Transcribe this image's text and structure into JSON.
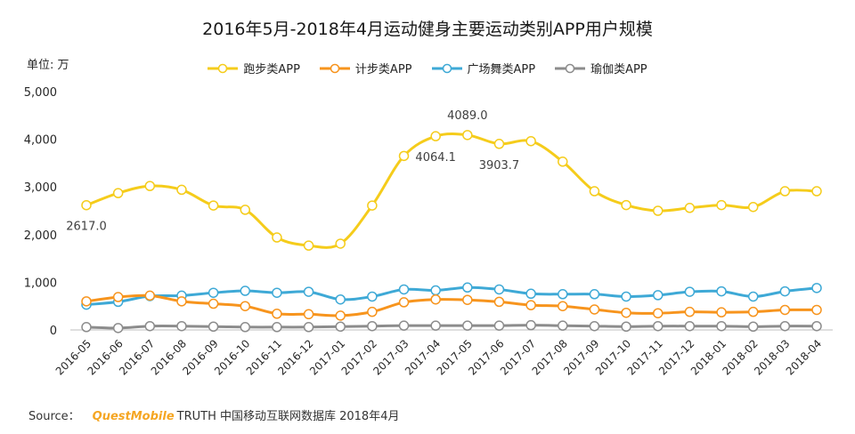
{
  "page": {
    "title": "2016年5月-2018年4月运动健身主要运动类别APP用户规模",
    "unit": "单位: 万",
    "source_label": "Source：",
    "source_brand": "QuestMobile",
    "source_text": "TRUTH 中国移动互联网数据库 2018年4月"
  },
  "chart_data": {
    "type": "line",
    "title": "2016年5月-2018年4月运动健身主要运动类别APP用户规模",
    "ylabel": "单位: 万",
    "ylim": [
      0,
      5000
    ],
    "yticks": [
      0,
      1000,
      2000,
      3000,
      4000,
      5000
    ],
    "ytick_labels": [
      "0",
      "1,000",
      "2,000",
      "3,000",
      "4,000",
      "5,000"
    ],
    "grid": false,
    "legend_position": "top",
    "categories": [
      "2016-05",
      "2016-06",
      "2016-07",
      "2016-08",
      "2016-09",
      "2016-10",
      "2016-11",
      "2016-12",
      "2017-01",
      "2017-02",
      "2017-03",
      "2017-04",
      "2017-05",
      "2017-06",
      "2017-07",
      "2017-08",
      "2017-09",
      "2017-10",
      "2017-11",
      "2017-12",
      "2018-01",
      "2018-02",
      "2018-03",
      "2018-04"
    ],
    "series": [
      {
        "name": "跑步类APP",
        "color": "#f5cc1b",
        "values": [
          2617.0,
          2870,
          3020,
          2940,
          2610,
          2520,
          1940,
          1770,
          1810,
          2610,
          3650,
          4064.1,
          4089.0,
          3903.7,
          3960,
          3530,
          2910,
          2620,
          2500,
          2560,
          2620,
          2580,
          2910,
          2910
        ]
      },
      {
        "name": "计步类APP",
        "color": "#f7941d",
        "values": [
          600,
          690,
          720,
          600,
          550,
          500,
          340,
          330,
          300,
          380,
          580,
          640,
          630,
          590,
          520,
          500,
          430,
          360,
          350,
          380,
          370,
          380,
          420,
          420
        ]
      },
      {
        "name": "广场舞类APP",
        "color": "#3ea9d6",
        "values": [
          530,
          590,
          710,
          720,
          780,
          820,
          780,
          800,
          640,
          700,
          850,
          830,
          890,
          850,
          760,
          750,
          750,
          700,
          730,
          800,
          810,
          700,
          810,
          880
        ]
      },
      {
        "name": "瑜伽类APP",
        "color": "#8c8c8c",
        "values": [
          60,
          40,
          80,
          80,
          70,
          60,
          60,
          60,
          70,
          80,
          90,
          90,
          90,
          90,
          100,
          90,
          80,
          70,
          80,
          80,
          80,
          70,
          80,
          80
        ]
      }
    ],
    "data_labels": [
      {
        "series": 0,
        "index": 0,
        "text": "2617.0",
        "position": "below"
      },
      {
        "series": 0,
        "index": 11,
        "text": "4064.1",
        "position": "below"
      },
      {
        "series": 0,
        "index": 12,
        "text": "4089.0",
        "position": "above"
      },
      {
        "series": 0,
        "index": 13,
        "text": "3903.7",
        "position": "below"
      }
    ]
  }
}
